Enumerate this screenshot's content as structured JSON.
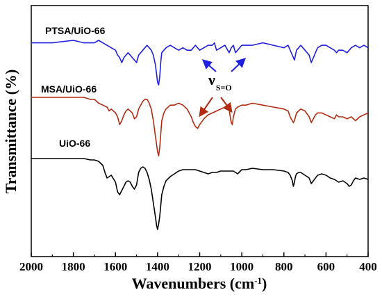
{
  "chart_data": {
    "type": "line",
    "title": "",
    "xlabel": "Wavenumbers (cm",
    "xlabel_superscript": "-1",
    "xlabel_suffix": ")",
    "ylabel": "Transmittance (%)",
    "xlim": [
      2000,
      400
    ],
    "x_reversed": true,
    "y_ticks_shown": false,
    "grid": false,
    "legend": "none (inline series labels)",
    "x_ticks": [
      "2000",
      "1800",
      "1600",
      "1400",
      "1200",
      "1000",
      "800",
      "600",
      "400"
    ],
    "y_scale": "arbitrary units, vertically offset",
    "series": [
      {
        "name": "PTSA/UiO-66",
        "color": "#1f1fe0",
        "x": [
          2000,
          1900,
          1800,
          1750,
          1700,
          1680,
          1660,
          1640,
          1620,
          1600,
          1590,
          1580,
          1570,
          1560,
          1550,
          1540,
          1530,
          1520,
          1510,
          1500,
          1490,
          1480,
          1470,
          1460,
          1450,
          1440,
          1430,
          1420,
          1410,
          1400,
          1395,
          1390,
          1385,
          1380,
          1370,
          1360,
          1340,
          1320,
          1300,
          1280,
          1260,
          1240,
          1220,
          1200,
          1180,
          1160,
          1140,
          1130,
          1120,
          1100,
          1080,
          1060,
          1050,
          1040,
          1030,
          1020,
          1010,
          1000,
          980,
          950,
          900,
          850,
          800,
          780,
          770,
          760,
          750,
          745,
          740,
          730,
          720,
          700,
          680,
          670,
          660,
          650,
          640,
          620,
          600,
          580,
          560,
          550,
          540,
          520,
          500,
          480,
          460,
          440,
          420,
          400
        ],
        "y": [
          83,
          83,
          82,
          83,
          83,
          82,
          83,
          84,
          85,
          86,
          88,
          89,
          91,
          89,
          88,
          87,
          88,
          89,
          90,
          91,
          88,
          87,
          86,
          85,
          84,
          85,
          86,
          88,
          92,
          99,
          100,
          97,
          91,
          87,
          86,
          85,
          84,
          85,
          86,
          85,
          86,
          86,
          84,
          86,
          85,
          84,
          84,
          83,
          86,
          85,
          84,
          87,
          85,
          84,
          87,
          86,
          85,
          84,
          84,
          84,
          83,
          84,
          85,
          84,
          86,
          88,
          90,
          88,
          86,
          85,
          84,
          86,
          88,
          91,
          89,
          87,
          85,
          84,
          84,
          85,
          86,
          87,
          86,
          86,
          87,
          85,
          84,
          85,
          84,
          85
        ]
      },
      {
        "name": "MSA/UiO-66",
        "color": "#b22a10",
        "x": [
          2000,
          1900,
          1800,
          1750,
          1720,
          1700,
          1680,
          1660,
          1640,
          1630,
          1620,
          1600,
          1590,
          1580,
          1570,
          1560,
          1550,
          1540,
          1530,
          1520,
          1510,
          1500,
          1490,
          1480,
          1470,
          1460,
          1450,
          1440,
          1430,
          1420,
          1410,
          1400,
          1395,
          1390,
          1385,
          1380,
          1370,
          1360,
          1340,
          1320,
          1300,
          1280,
          1260,
          1240,
          1230,
          1220,
          1210,
          1200,
          1180,
          1160,
          1140,
          1120,
          1100,
          1080,
          1070,
          1060,
          1055,
          1050,
          1045,
          1040,
          1030,
          1020,
          1000,
          980,
          950,
          900,
          850,
          800,
          780,
          770,
          760,
          755,
          750,
          745,
          740,
          730,
          720,
          700,
          680,
          670,
          660,
          650,
          640,
          620,
          600,
          580,
          560,
          550,
          540,
          520,
          500,
          480,
          460,
          440,
          420,
          400
        ],
        "y": [
          60,
          60,
          60,
          60,
          61,
          61,
          63,
          64,
          65,
          67,
          66,
          68,
          70,
          74,
          72,
          69,
          67,
          66,
          67,
          68,
          71,
          70,
          66,
          64,
          62,
          61,
          61,
          63,
          66,
          72,
          80,
          88,
          90,
          86,
          79,
          72,
          68,
          66,
          64,
          64,
          63,
          64,
          66,
          70,
          73,
          75,
          76,
          74,
          71,
          69,
          68,
          67,
          66,
          65,
          64,
          66,
          70,
          73,
          74,
          70,
          66,
          65,
          64,
          64,
          63,
          64,
          65,
          66,
          67,
          70,
          72,
          73,
          72,
          70,
          68,
          67,
          66,
          67,
          70,
          73,
          71,
          69,
          68,
          68,
          69,
          70,
          71,
          69,
          70,
          70,
          71,
          70,
          72,
          70,
          69,
          68
        ]
      },
      {
        "name": "UiO-66",
        "color": "#000000",
        "x": [
          2000,
          1900,
          1800,
          1750,
          1720,
          1700,
          1680,
          1660,
          1650,
          1640,
          1630,
          1620,
          1600,
          1590,
          1580,
          1570,
          1560,
          1550,
          1540,
          1530,
          1520,
          1510,
          1500,
          1490,
          1480,
          1470,
          1460,
          1450,
          1440,
          1430,
          1420,
          1410,
          1405,
          1400,
          1395,
          1390,
          1385,
          1380,
          1370,
          1360,
          1340,
          1320,
          1300,
          1280,
          1260,
          1240,
          1220,
          1200,
          1180,
          1160,
          1140,
          1120,
          1100,
          1080,
          1060,
          1040,
          1020,
          1000,
          980,
          950,
          900,
          850,
          800,
          780,
          770,
          760,
          755,
          750,
          745,
          740,
          730,
          720,
          700,
          680,
          670,
          660,
          650,
          640,
          620,
          600,
          580,
          560,
          540,
          520,
          500,
          490,
          480,
          470,
          460,
          440,
          420,
          400
        ],
        "y": [
          40,
          40,
          40,
          40,
          41,
          41,
          42,
          45,
          50,
          54,
          53,
          52,
          57,
          64,
          66,
          63,
          60,
          57,
          56,
          57,
          60,
          62,
          59,
          50,
          47,
          46,
          47,
          50,
          55,
          62,
          72,
          82,
          88,
          91,
          87,
          82,
          74,
          66,
          60,
          56,
          53,
          51,
          49,
          48,
          48,
          48,
          48,
          49,
          50,
          51,
          50,
          50,
          49,
          49,
          49,
          49,
          51,
          48,
          48,
          47,
          48,
          48,
          49,
          50,
          52,
          56,
          60,
          57,
          53,
          51,
          50,
          50,
          52,
          54,
          58,
          56,
          54,
          52,
          51,
          52,
          54,
          55,
          57,
          56,
          58,
          60,
          59,
          56,
          54,
          55,
          54,
          55
        ]
      }
    ],
    "annotations": [
      {
        "text": "ν",
        "subscript": "S=O"
      }
    ]
  },
  "labels": {
    "series1": "PTSA/UiO-66",
    "series2": "MSA/UiO-66",
    "series3": "UiO-66",
    "annot_nu": "ν",
    "annot_sub": "S=O"
  }
}
